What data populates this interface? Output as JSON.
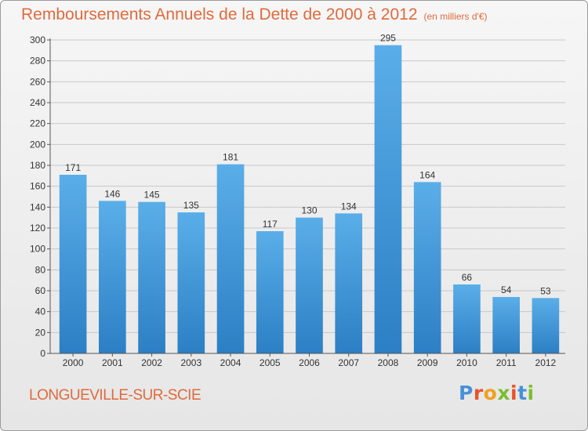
{
  "title": "Remboursements Annuels de la Dette de 2000 à 2012",
  "unit_note": "(en milliers d'€)",
  "commune": "LONGUEVILLE-SUR-SCIE",
  "logo": {
    "text": "Proxiti",
    "letter_colors": [
      "#4a90d9",
      "#e8542a",
      "#f0a020",
      "#7bbd33",
      "#e8542a",
      "#4a90d9",
      "#7bbd33"
    ]
  },
  "colors": {
    "title": "#e06a3c",
    "bar_top": "#5aaee8",
    "bar_bottom": "#2c7fc4",
    "grid": "#c8c8c8",
    "axis": "#555555"
  },
  "chart_data": {
    "type": "bar",
    "title": "Remboursements Annuels de la Dette de 2000 à 2012",
    "subtitle": "(en milliers d'€)",
    "xlabel": "",
    "ylabel": "",
    "categories": [
      "2000",
      "2001",
      "2002",
      "2003",
      "2004",
      "2005",
      "2006",
      "2007",
      "2008",
      "2009",
      "2010",
      "2011",
      "2012"
    ],
    "values": [
      171,
      146,
      145,
      135,
      181,
      117,
      130,
      134,
      295,
      164,
      66,
      54,
      53
    ],
    "ylim": [
      0,
      300
    ],
    "yticks": [
      0,
      20,
      40,
      60,
      80,
      100,
      120,
      140,
      160,
      180,
      200,
      220,
      240,
      260,
      280,
      300
    ],
    "grid": true,
    "legend": "none",
    "data_labels": true
  }
}
